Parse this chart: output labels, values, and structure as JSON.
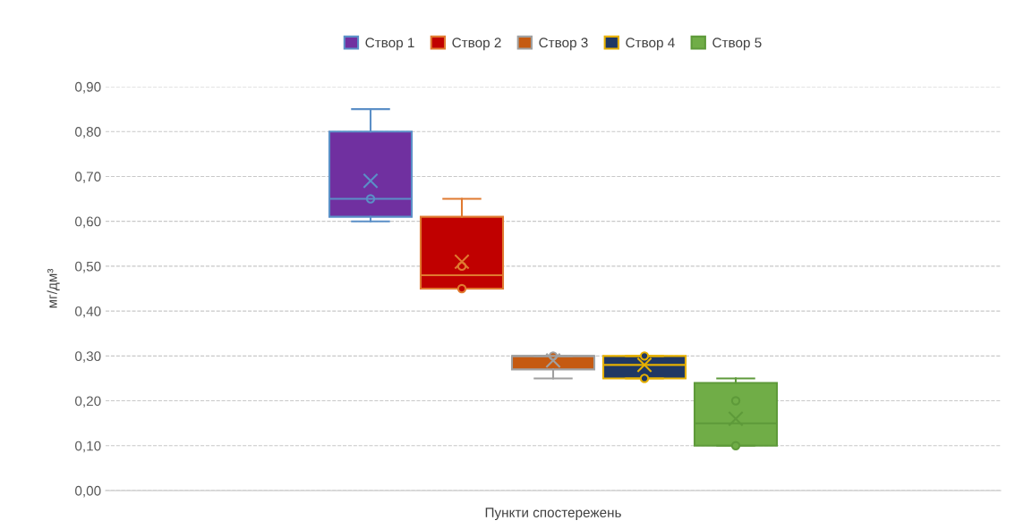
{
  "chart_data": {
    "type": "box",
    "xlabel": "Пункти спостережень",
    "ylabel": "мг/дм³",
    "categories": [
      null
    ],
    "ylim": [
      0,
      0.9
    ],
    "yticks": [
      {
        "value": 0,
        "label": "0,00"
      },
      {
        "value": 0.1,
        "label": "0,10"
      },
      {
        "value": 0.2,
        "label": "0,20"
      },
      {
        "value": 0.3,
        "label": "0,30"
      },
      {
        "value": 0.4,
        "label": "0,40"
      },
      {
        "value": 0.5,
        "label": "0,50"
      },
      {
        "value": 0.6,
        "label": "0,60"
      },
      {
        "value": 0.7,
        "label": "0,70"
      },
      {
        "value": 0.8,
        "label": "0,80"
      },
      {
        "value": 0.9,
        "label": "0,90"
      }
    ],
    "grid": "y",
    "legend": "top",
    "series": [
      {
        "name": "Створ 1",
        "color": "#7030a0",
        "boxes": [
          {
            "low": 0.6,
            "q1": 0.61,
            "median": 0.65,
            "q3": 0.8,
            "high": 0.85,
            "mean": 0.69,
            "outliers": [
              0.65
            ]
          }
        ]
      },
      {
        "name": "Створ 2",
        "color": "#c00000",
        "boxes": [
          {
            "low": 0.45,
            "q1": 0.45,
            "median": 0.48,
            "q3": 0.61,
            "high": 0.65,
            "mean": 0.51,
            "outliers": [
              0.5,
              0.45
            ]
          }
        ]
      },
      {
        "name": "Створ 3",
        "color": "#c55a11",
        "boxes": [
          {
            "low": 0.25,
            "q1": 0.27,
            "median": 0.3,
            "q3": 0.3,
            "high": 0.3,
            "mean": 0.29,
            "outliers": [
              0.3
            ]
          }
        ]
      },
      {
        "name": "Створ 4",
        "color": "#203864",
        "boxes": [
          {
            "low": 0.25,
            "q1": 0.25,
            "median": 0.28,
            "q3": 0.3,
            "high": 0.3,
            "mean": 0.28,
            "outliers": [
              0.3,
              0.25
            ]
          }
        ]
      },
      {
        "name": "Створ 5",
        "color": "#70ad47",
        "boxes": [
          {
            "low": 0.1,
            "q1": 0.1,
            "median": 0.15,
            "q3": 0.24,
            "high": 0.25,
            "mean": 0.16,
            "outliers": [
              0.2,
              0.1
            ]
          }
        ]
      }
    ]
  }
}
